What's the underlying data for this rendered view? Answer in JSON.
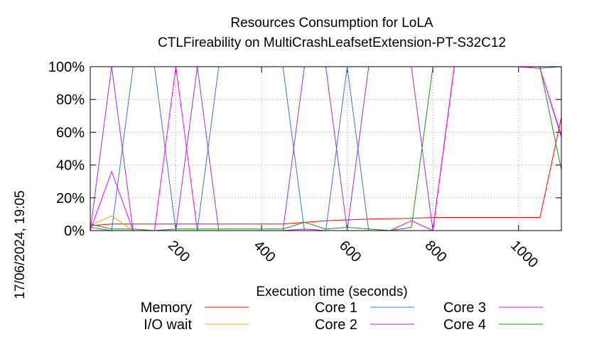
{
  "chart_data": {
    "type": "line",
    "title": "Resources Consumption for LoLA",
    "subtitle": "CTLFireability on MultiCrashLeafsetExtension-PT-S32C12",
    "xlabel": "Execution time (seconds)",
    "ylabel": "",
    "xlim": [
      0,
      1100
    ],
    "ylim": [
      0,
      100
    ],
    "x_ticks": [
      200,
      400,
      600,
      800,
      1000
    ],
    "x_tick_labels": [
      "200",
      "400",
      "600",
      "800",
      "1000"
    ],
    "y_ticks": [
      0,
      20,
      40,
      60,
      80,
      100
    ],
    "y_tick_labels": [
      "0%",
      "20%",
      "40%",
      "60%",
      "80%",
      "100%"
    ],
    "grid": true,
    "legend_position": "bottom",
    "timestamp": "17/06/2024, 19:05",
    "series": [
      {
        "name": "Memory",
        "color": "#ff0000",
        "points": [
          [
            0,
            3
          ],
          [
            50,
            4
          ],
          [
            100,
            4
          ],
          [
            200,
            4
          ],
          [
            300,
            4
          ],
          [
            450,
            4
          ],
          [
            500,
            5
          ],
          [
            550,
            6
          ],
          [
            650,
            7
          ],
          [
            750,
            7.5
          ],
          [
            800,
            8
          ],
          [
            900,
            8
          ],
          [
            1000,
            8
          ],
          [
            1050,
            8
          ],
          [
            1100,
            69
          ]
        ]
      },
      {
        "name": "I/O wait",
        "color": "#ffa500",
        "points": [
          [
            0,
            3
          ],
          [
            50,
            9
          ],
          [
            100,
            0
          ],
          [
            150,
            0
          ],
          [
            200,
            0
          ],
          [
            300,
            0
          ],
          [
            450,
            0
          ],
          [
            500,
            0
          ],
          [
            550,
            0
          ],
          [
            650,
            0
          ],
          [
            750,
            0
          ],
          [
            800,
            0
          ],
          [
            900,
            0
          ],
          [
            1000,
            0
          ],
          [
            1050,
            0
          ],
          [
            1100,
            0
          ]
        ]
      },
      {
        "name": "Core 1",
        "color": "#4472c4",
        "points": [
          [
            0,
            2
          ],
          [
            50,
            0
          ],
          [
            100,
            100
          ],
          [
            150,
            100
          ],
          [
            200,
            0
          ],
          [
            250,
            0
          ],
          [
            300,
            100
          ],
          [
            350,
            100
          ],
          [
            400,
            100
          ],
          [
            450,
            100
          ],
          [
            500,
            0
          ],
          [
            550,
            0
          ],
          [
            600,
            100
          ],
          [
            650,
            0
          ],
          [
            700,
            0
          ],
          [
            750,
            0
          ],
          [
            800,
            0
          ],
          [
            850,
            100
          ],
          [
            900,
            100
          ],
          [
            1000,
            100
          ],
          [
            1050,
            99
          ],
          [
            1100,
            100
          ]
        ]
      },
      {
        "name": "Core 2",
        "color": "#9932cc",
        "points": [
          [
            0,
            0
          ],
          [
            50,
            100
          ],
          [
            100,
            0
          ],
          [
            150,
            0
          ],
          [
            200,
            0
          ],
          [
            250,
            100
          ],
          [
            300,
            0
          ],
          [
            350,
            0
          ],
          [
            400,
            0
          ],
          [
            450,
            0
          ],
          [
            500,
            100
          ],
          [
            550,
            100
          ],
          [
            600,
            0
          ],
          [
            650,
            100
          ],
          [
            700,
            100
          ],
          [
            750,
            100
          ],
          [
            800,
            0
          ],
          [
            850,
            100
          ],
          [
            900,
            100
          ],
          [
            1000,
            100
          ],
          [
            1050,
            99
          ],
          [
            1100,
            57
          ]
        ]
      },
      {
        "name": "Core 3",
        "color": "#ff00ff",
        "points": [
          [
            0,
            0
          ],
          [
            50,
            36
          ],
          [
            100,
            0
          ],
          [
            150,
            0
          ],
          [
            200,
            100
          ],
          [
            250,
            0
          ],
          [
            300,
            0
          ],
          [
            350,
            0
          ],
          [
            400,
            0
          ],
          [
            450,
            0
          ],
          [
            500,
            1
          ],
          [
            550,
            0
          ],
          [
            600,
            0
          ],
          [
            650,
            0
          ],
          [
            700,
            0
          ],
          [
            750,
            6
          ],
          [
            800,
            0
          ],
          [
            850,
            100
          ],
          [
            900,
            100
          ],
          [
            1000,
            100
          ],
          [
            1050,
            99
          ],
          [
            1100,
            58
          ]
        ]
      },
      {
        "name": "Core 4",
        "color": "#228b22",
        "points": [
          [
            0,
            4
          ],
          [
            50,
            1
          ],
          [
            100,
            1
          ],
          [
            150,
            0
          ],
          [
            200,
            1
          ],
          [
            250,
            1
          ],
          [
            300,
            1
          ],
          [
            350,
            1
          ],
          [
            400,
            1
          ],
          [
            450,
            1
          ],
          [
            500,
            5
          ],
          [
            550,
            1
          ],
          [
            600,
            2
          ],
          [
            650,
            1
          ],
          [
            700,
            0
          ],
          [
            750,
            2
          ],
          [
            800,
            100
          ],
          [
            850,
            100
          ],
          [
            900,
            100
          ],
          [
            1000,
            100
          ],
          [
            1050,
            100
          ],
          [
            1100,
            37
          ]
        ]
      }
    ]
  }
}
